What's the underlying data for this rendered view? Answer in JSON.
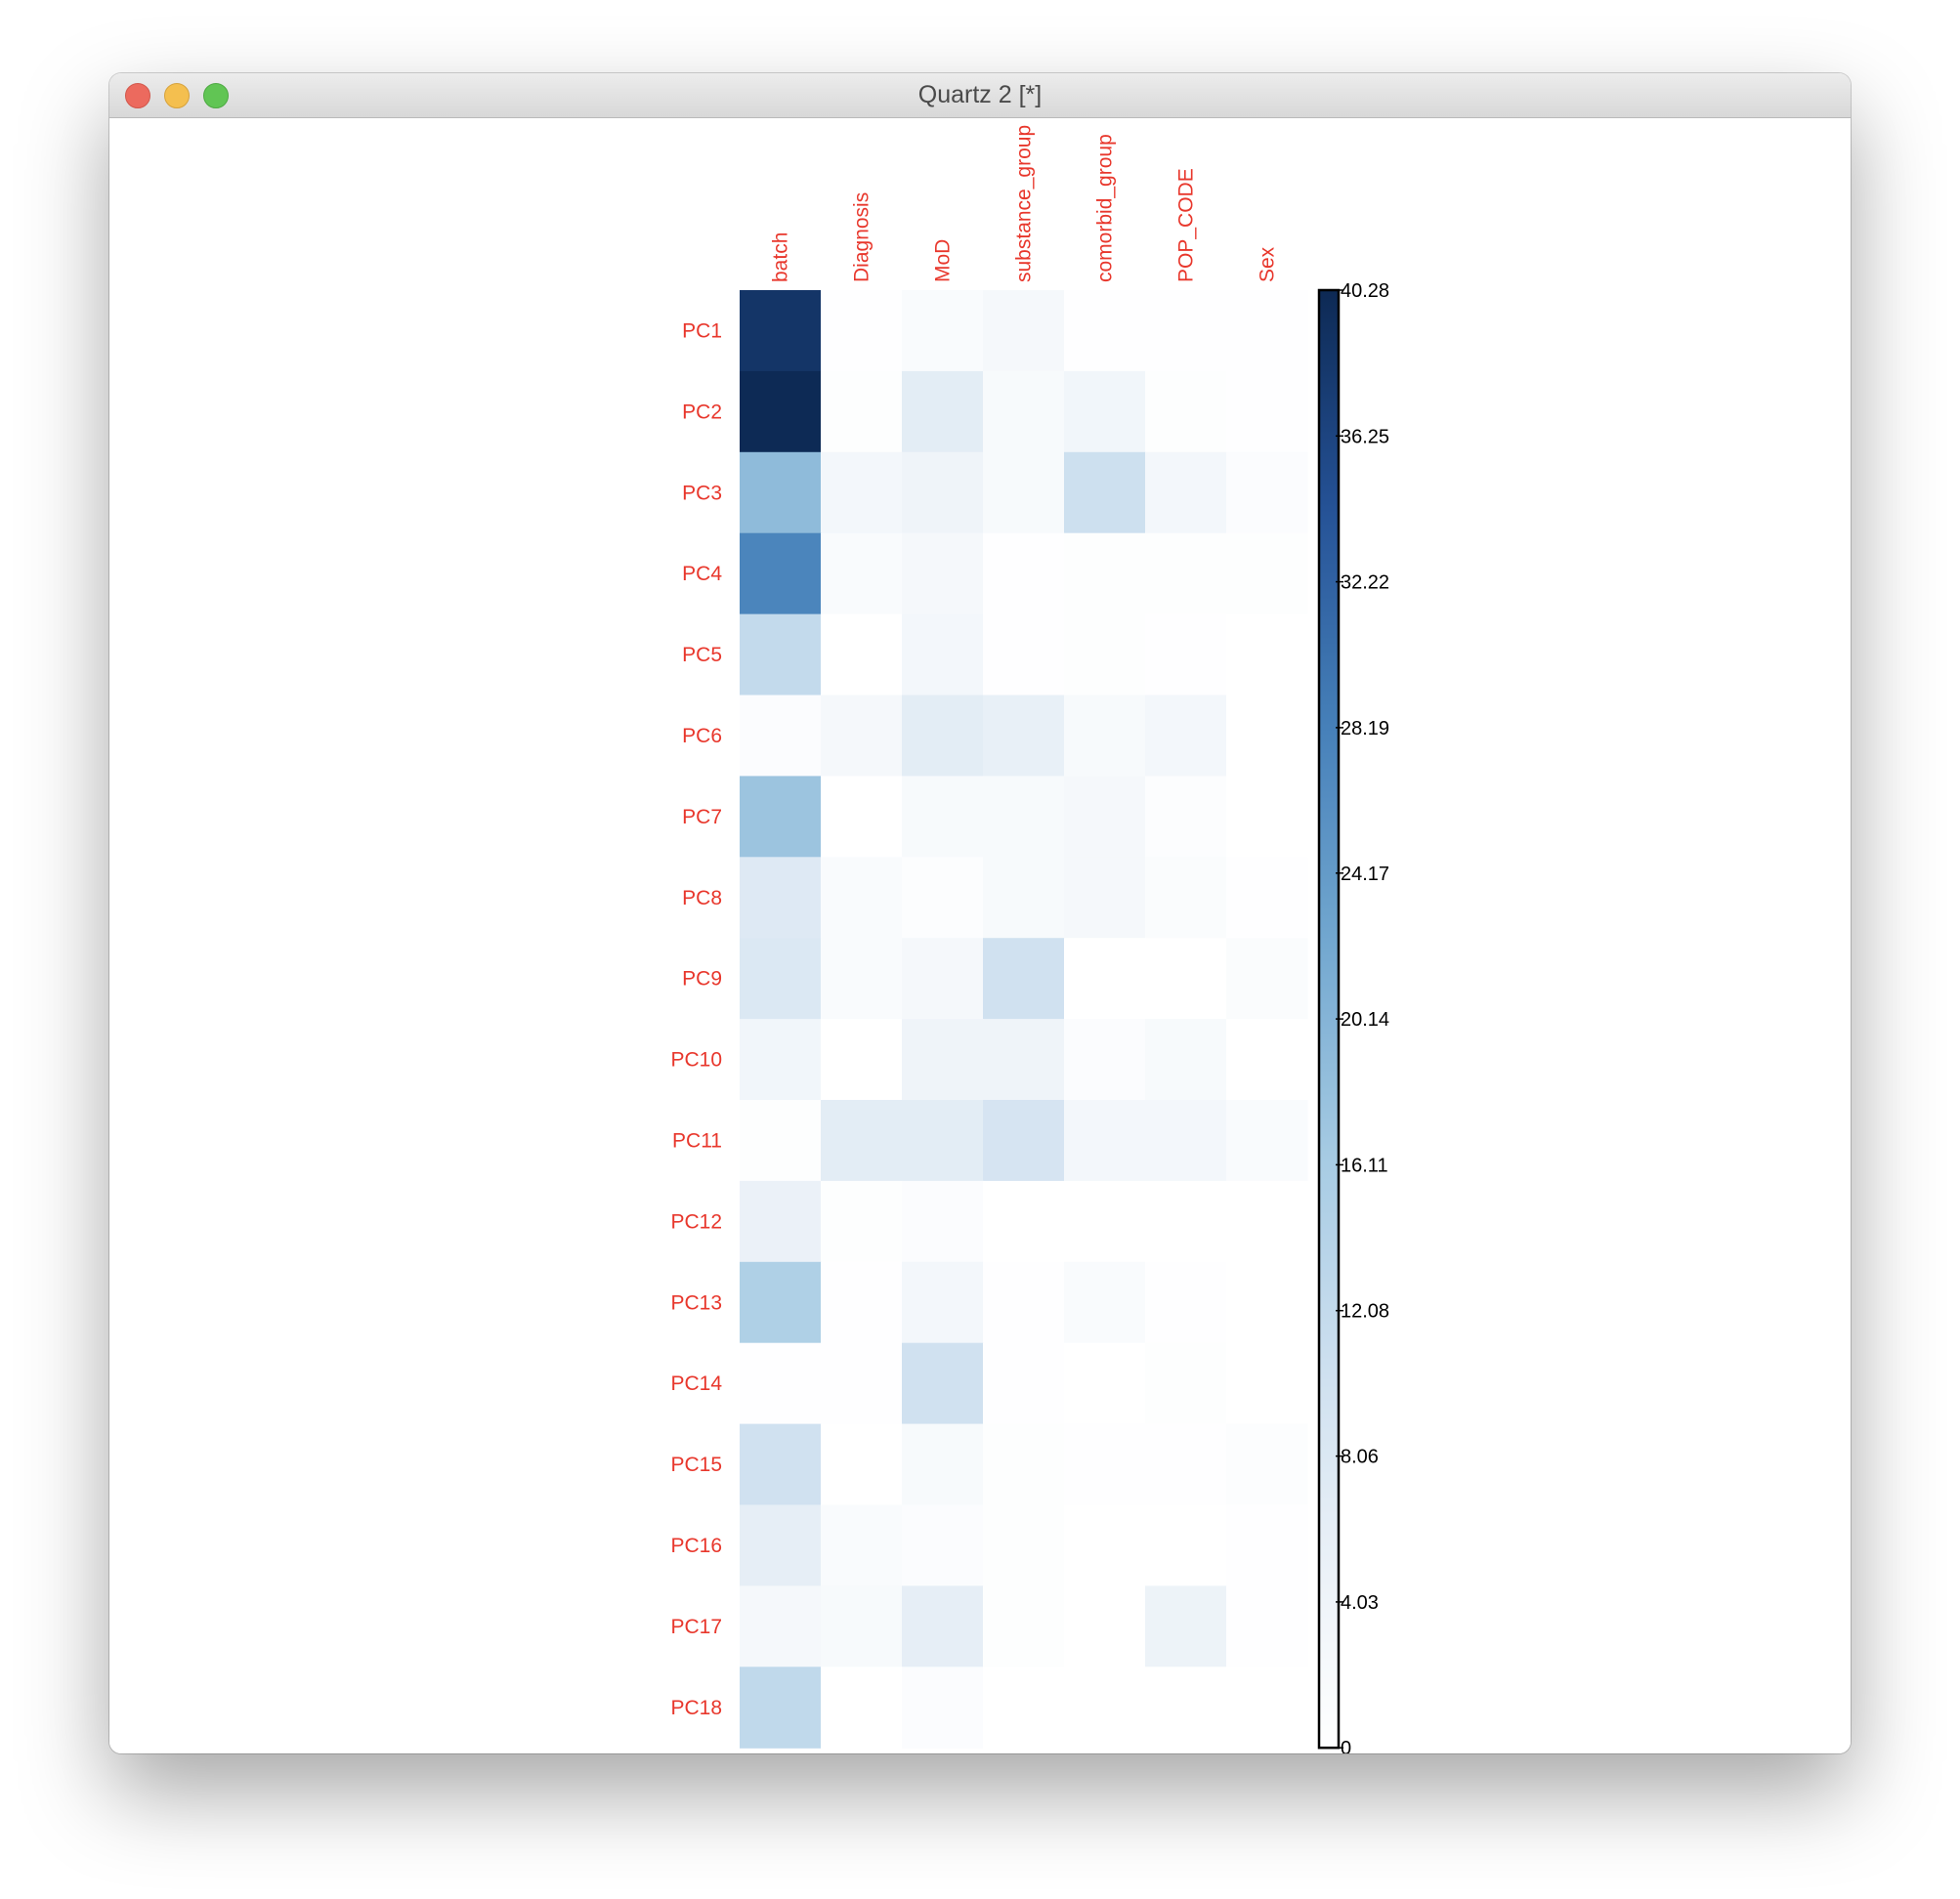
{
  "window": {
    "title": "Quartz 2 [*]"
  },
  "colors": {
    "label_color": "#e8372c",
    "low": "#ffffff",
    "high": "#0b2752"
  },
  "chart_data": {
    "type": "heatmap",
    "columns": [
      "batch",
      "Diagnosis",
      "MoD",
      "substance_group",
      "comorbid_group",
      "POP_CODE",
      "Sex"
    ],
    "rows": [
      "PC1",
      "PC2",
      "PC3",
      "PC4",
      "PC5",
      "PC6",
      "PC7",
      "PC8",
      "PC9",
      "PC10",
      "PC11",
      "PC12",
      "PC13",
      "PC14",
      "PC15",
      "PC16",
      "PC17",
      "PC18"
    ],
    "values": [
      [
        38.5,
        0.3,
        1.5,
        2.5,
        0.2,
        0.2,
        0.2
      ],
      [
        40.2,
        0.5,
        6.5,
        2.0,
        3.5,
        0.5,
        0.2
      ],
      [
        19.0,
        3.0,
        4.0,
        2.0,
        10.5,
        3.0,
        1.0
      ],
      [
        27.5,
        1.5,
        2.5,
        0.3,
        0.5,
        0.5,
        0.5
      ],
      [
        12.0,
        0.0,
        3.0,
        0.2,
        0.5,
        0.3,
        0.0
      ],
      [
        1.0,
        2.5,
        6.5,
        5.5,
        2.0,
        3.0,
        0.0
      ],
      [
        17.5,
        0.0,
        2.0,
        2.0,
        2.5,
        0.8,
        0.0
      ],
      [
        7.5,
        1.5,
        0.8,
        2.0,
        2.5,
        1.2,
        0.3
      ],
      [
        8.0,
        1.5,
        2.5,
        10.0,
        0.0,
        0.0,
        1.2
      ],
      [
        3.5,
        0.0,
        4.0,
        4.0,
        1.0,
        2.0,
        0.0
      ],
      [
        0.5,
        6.5,
        6.5,
        9.0,
        3.0,
        3.0,
        1.5
      ],
      [
        5.0,
        0.5,
        1.0,
        0.0,
        0.0,
        0.0,
        0.0
      ],
      [
        15.0,
        0.3,
        3.0,
        0.3,
        1.5,
        0.2,
        0.0
      ],
      [
        0.3,
        0.3,
        10.0,
        0.3,
        0.0,
        0.5,
        0.0
      ],
      [
        10.0,
        0.0,
        2.0,
        0.5,
        0.3,
        0.3,
        0.8
      ],
      [
        6.0,
        1.5,
        1.0,
        0.5,
        0.0,
        0.0,
        0.3
      ],
      [
        2.5,
        2.0,
        6.0,
        0.5,
        0.0,
        4.5,
        0.3
      ],
      [
        12.5,
        0.0,
        1.0,
        0.0,
        0.0,
        0.0,
        0.0
      ]
    ],
    "colorbar": {
      "min": 0,
      "max": 40.28,
      "tick_values": [
        0,
        4.03,
        8.06,
        12.08,
        16.11,
        20.14,
        24.17,
        28.19,
        32.22,
        36.25,
        40.28
      ],
      "tick_labels": [
        "0",
        "4.03",
        "8.06",
        "12.08",
        "16.11",
        "20.14",
        "24.17",
        "28.19",
        "32.22",
        "36.25",
        "40.28"
      ]
    }
  }
}
